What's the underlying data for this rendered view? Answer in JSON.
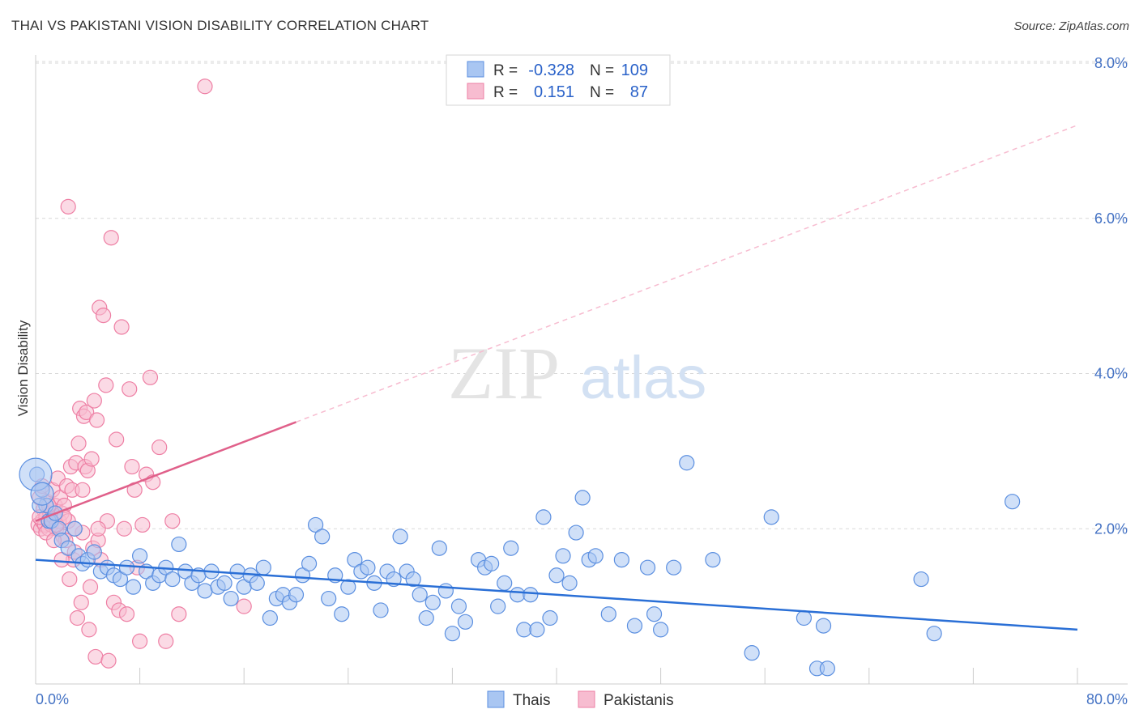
{
  "header": {
    "title": "THAI VS PAKISTANI VISION DISABILITY CORRELATION CHART",
    "source": "Source: ZipAtlas.com"
  },
  "watermark": {
    "zip": "ZIP",
    "atlas": "atlas"
  },
  "colors": {
    "thais": "#5b8fe0",
    "thais_fill": "#a9c6f2",
    "pakistanis": "#ee7fa4",
    "pakistanis_fill": "#f7bcd0",
    "thais_line": "#2a6fd6",
    "pakistanis_line": "#e0608a",
    "grid": "#d8d8d8"
  },
  "legend": {
    "rows": [
      {
        "r_label": "R =",
        "r_value": "-0.328",
        "n_label": "N =",
        "n_value": "109"
      },
      {
        "r_label": "R =",
        "r_value": "0.151",
        "n_label": "N =",
        "n_value": "87"
      }
    ]
  },
  "chart_data": {
    "type": "scatter",
    "title": "THAI VS PAKISTANI VISION DISABILITY CORRELATION CHART",
    "ylabel": "Vision Disability",
    "xlabel": "",
    "xlim": [
      0,
      80
    ],
    "ylim": [
      0,
      8.0
    ],
    "x_tick_labels": [
      "0.0%",
      "80.0%"
    ],
    "y_ticks": [
      2.0,
      4.0,
      6.0,
      8.0
    ],
    "y_tick_labels": [
      "2.0%",
      "4.0%",
      "6.0%",
      "8.0%"
    ],
    "grid": true,
    "legend_position": "bottom-center",
    "series": [
      {
        "name": "Thais",
        "r": -0.328,
        "n": 109,
        "trend": {
          "x0": 0,
          "y0": 1.6,
          "x1": 80,
          "y1": 0.7
        },
        "points": [
          [
            0.1,
            2.7
          ],
          [
            0.5,
            2.5
          ],
          [
            0.8,
            2.3
          ],
          [
            1.0,
            2.1
          ],
          [
            1.2,
            2.1
          ],
          [
            1.5,
            2.2
          ],
          [
            1.8,
            2.0
          ],
          [
            2.0,
            1.85
          ],
          [
            2.5,
            1.75
          ],
          [
            3.0,
            2.0
          ],
          [
            3.3,
            1.65
          ],
          [
            3.6,
            1.55
          ],
          [
            4.0,
            1.6
          ],
          [
            4.5,
            1.7
          ],
          [
            5.0,
            1.45
          ],
          [
            5.5,
            1.5
          ],
          [
            6.0,
            1.4
          ],
          [
            6.5,
            1.35
          ],
          [
            7.0,
            1.5
          ],
          [
            7.5,
            1.25
          ],
          [
            8.0,
            1.65
          ],
          [
            8.5,
            1.45
          ],
          [
            9.0,
            1.3
          ],
          [
            9.5,
            1.4
          ],
          [
            10.0,
            1.5
          ],
          [
            10.5,
            1.35
          ],
          [
            11.0,
            1.8
          ],
          [
            11.5,
            1.45
          ],
          [
            12.0,
            1.3
          ],
          [
            12.5,
            1.4
          ],
          [
            13.0,
            1.2
          ],
          [
            13.5,
            1.45
          ],
          [
            14.0,
            1.25
          ],
          [
            14.5,
            1.3
          ],
          [
            15.0,
            1.1
          ],
          [
            15.5,
            1.45
          ],
          [
            16.0,
            1.25
          ],
          [
            16.5,
            1.4
          ],
          [
            17.0,
            1.3
          ],
          [
            17.5,
            1.5
          ],
          [
            18.0,
            0.85
          ],
          [
            18.5,
            1.1
          ],
          [
            19.0,
            1.15
          ],
          [
            19.5,
            1.05
          ],
          [
            20.0,
            1.15
          ],
          [
            20.5,
            1.4
          ],
          [
            21.0,
            1.55
          ],
          [
            21.5,
            2.05
          ],
          [
            22.0,
            1.9
          ],
          [
            22.5,
            1.1
          ],
          [
            23.0,
            1.4
          ],
          [
            23.5,
            0.9
          ],
          [
            24.0,
            1.25
          ],
          [
            24.5,
            1.6
          ],
          [
            25.0,
            1.45
          ],
          [
            25.5,
            1.5
          ],
          [
            26.0,
            1.3
          ],
          [
            26.5,
            0.95
          ],
          [
            27.0,
            1.45
          ],
          [
            27.5,
            1.35
          ],
          [
            28.0,
            1.9
          ],
          [
            28.5,
            1.45
          ],
          [
            29.0,
            1.35
          ],
          [
            29.5,
            1.15
          ],
          [
            30.0,
            0.85
          ],
          [
            30.5,
            1.05
          ],
          [
            31.0,
            1.75
          ],
          [
            31.5,
            1.2
          ],
          [
            32.0,
            0.65
          ],
          [
            32.5,
            1.0
          ],
          [
            33.0,
            0.8
          ],
          [
            34.0,
            1.6
          ],
          [
            34.5,
            1.5
          ],
          [
            35.0,
            1.55
          ],
          [
            35.5,
            1.0
          ],
          [
            36.0,
            1.3
          ],
          [
            36.5,
            1.75
          ],
          [
            37.0,
            1.15
          ],
          [
            37.5,
            0.7
          ],
          [
            38.0,
            1.15
          ],
          [
            38.5,
            0.7
          ],
          [
            39.0,
            2.15
          ],
          [
            39.5,
            0.85
          ],
          [
            40.0,
            1.4
          ],
          [
            40.5,
            1.65
          ],
          [
            41.0,
            1.3
          ],
          [
            41.5,
            1.95
          ],
          [
            42.0,
            2.4
          ],
          [
            42.5,
            1.6
          ],
          [
            43.0,
            1.65
          ],
          [
            44.0,
            0.9
          ],
          [
            45.0,
            1.6
          ],
          [
            46.0,
            0.75
          ],
          [
            47.0,
            1.5
          ],
          [
            47.5,
            0.9
          ],
          [
            48.0,
            0.7
          ],
          [
            49.0,
            1.5
          ],
          [
            50.0,
            2.85
          ],
          [
            52.0,
            1.6
          ],
          [
            55.0,
            0.4
          ],
          [
            56.5,
            2.15
          ],
          [
            59.0,
            0.85
          ],
          [
            60.0,
            0.2
          ],
          [
            60.5,
            0.75
          ],
          [
            60.8,
            0.2
          ],
          [
            68.0,
            1.35
          ],
          [
            69.0,
            0.65
          ],
          [
            75.0,
            2.35
          ],
          [
            0.3,
            2.3
          ]
        ]
      },
      {
        "name": "Pakistanis",
        "r": 0.151,
        "n": 87,
        "trend": {
          "x0": 0,
          "y0": 2.1,
          "x1": 80,
          "y1": 7.2,
          "solid_until_x": 20
        },
        "points": [
          [
            0.2,
            2.05
          ],
          [
            0.3,
            2.4
          ],
          [
            0.4,
            2.0
          ],
          [
            0.5,
            2.1
          ],
          [
            0.6,
            2.25
          ],
          [
            0.7,
            2.05
          ],
          [
            0.8,
            2.15
          ],
          [
            0.9,
            2.35
          ],
          [
            1.0,
            2.0
          ],
          [
            1.1,
            2.2
          ],
          [
            1.2,
            2.05
          ],
          [
            1.3,
            2.5
          ],
          [
            1.4,
            2.15
          ],
          [
            1.5,
            2.3
          ],
          [
            1.6,
            2.0
          ],
          [
            1.7,
            2.65
          ],
          [
            1.8,
            2.1
          ],
          [
            1.9,
            2.4
          ],
          [
            2.0,
            2.2
          ],
          [
            2.1,
            1.9
          ],
          [
            2.2,
            2.3
          ],
          [
            2.3,
            1.85
          ],
          [
            2.4,
            2.55
          ],
          [
            2.5,
            2.1
          ],
          [
            2.6,
            1.35
          ],
          [
            2.7,
            2.8
          ],
          [
            2.8,
            2.5
          ],
          [
            2.9,
            1.6
          ],
          [
            3.0,
            1.7
          ],
          [
            3.1,
            2.85
          ],
          [
            3.2,
            0.85
          ],
          [
            3.3,
            3.1
          ],
          [
            3.4,
            3.55
          ],
          [
            3.5,
            1.05
          ],
          [
            3.6,
            2.5
          ],
          [
            3.7,
            3.45
          ],
          [
            3.8,
            2.8
          ],
          [
            3.9,
            3.5
          ],
          [
            4.0,
            2.75
          ],
          [
            4.1,
            0.7
          ],
          [
            4.2,
            1.25
          ],
          [
            4.3,
            2.9
          ],
          [
            4.4,
            1.75
          ],
          [
            4.5,
            3.65
          ],
          [
            4.6,
            0.35
          ],
          [
            4.7,
            3.4
          ],
          [
            4.8,
            1.85
          ],
          [
            4.9,
            4.85
          ],
          [
            5.0,
            1.6
          ],
          [
            5.2,
            4.75
          ],
          [
            5.4,
            3.85
          ],
          [
            5.5,
            2.1
          ],
          [
            5.6,
            0.3
          ],
          [
            5.8,
            5.75
          ],
          [
            6.0,
            1.05
          ],
          [
            6.2,
            3.15
          ],
          [
            6.4,
            0.95
          ],
          [
            6.6,
            4.6
          ],
          [
            6.8,
            2.0
          ],
          [
            7.0,
            0.9
          ],
          [
            7.2,
            3.8
          ],
          [
            7.4,
            2.8
          ],
          [
            7.6,
            2.5
          ],
          [
            7.8,
            1.5
          ],
          [
            8.0,
            0.55
          ],
          [
            8.2,
            2.05
          ],
          [
            8.5,
            2.7
          ],
          [
            8.8,
            3.95
          ],
          [
            9.0,
            2.6
          ],
          [
            9.5,
            3.05
          ],
          [
            10.0,
            0.55
          ],
          [
            10.5,
            2.1
          ],
          [
            11.0,
            0.9
          ],
          [
            13.0,
            7.7
          ],
          [
            16.0,
            1.0
          ],
          [
            3.6,
            1.95
          ],
          [
            2.5,
            6.15
          ],
          [
            1.0,
            2.3
          ],
          [
            0.8,
            1.95
          ],
          [
            1.4,
            1.85
          ],
          [
            2.0,
            1.6
          ],
          [
            0.5,
            2.55
          ],
          [
            1.6,
            2.05
          ],
          [
            3.0,
            2.0
          ],
          [
            0.3,
            2.15
          ],
          [
            4.8,
            2.0
          ],
          [
            2.2,
            2.15
          ]
        ]
      }
    ]
  },
  "bottom_legend": {
    "items": [
      {
        "label": "Thais"
      },
      {
        "label": "Pakistanis"
      }
    ]
  }
}
